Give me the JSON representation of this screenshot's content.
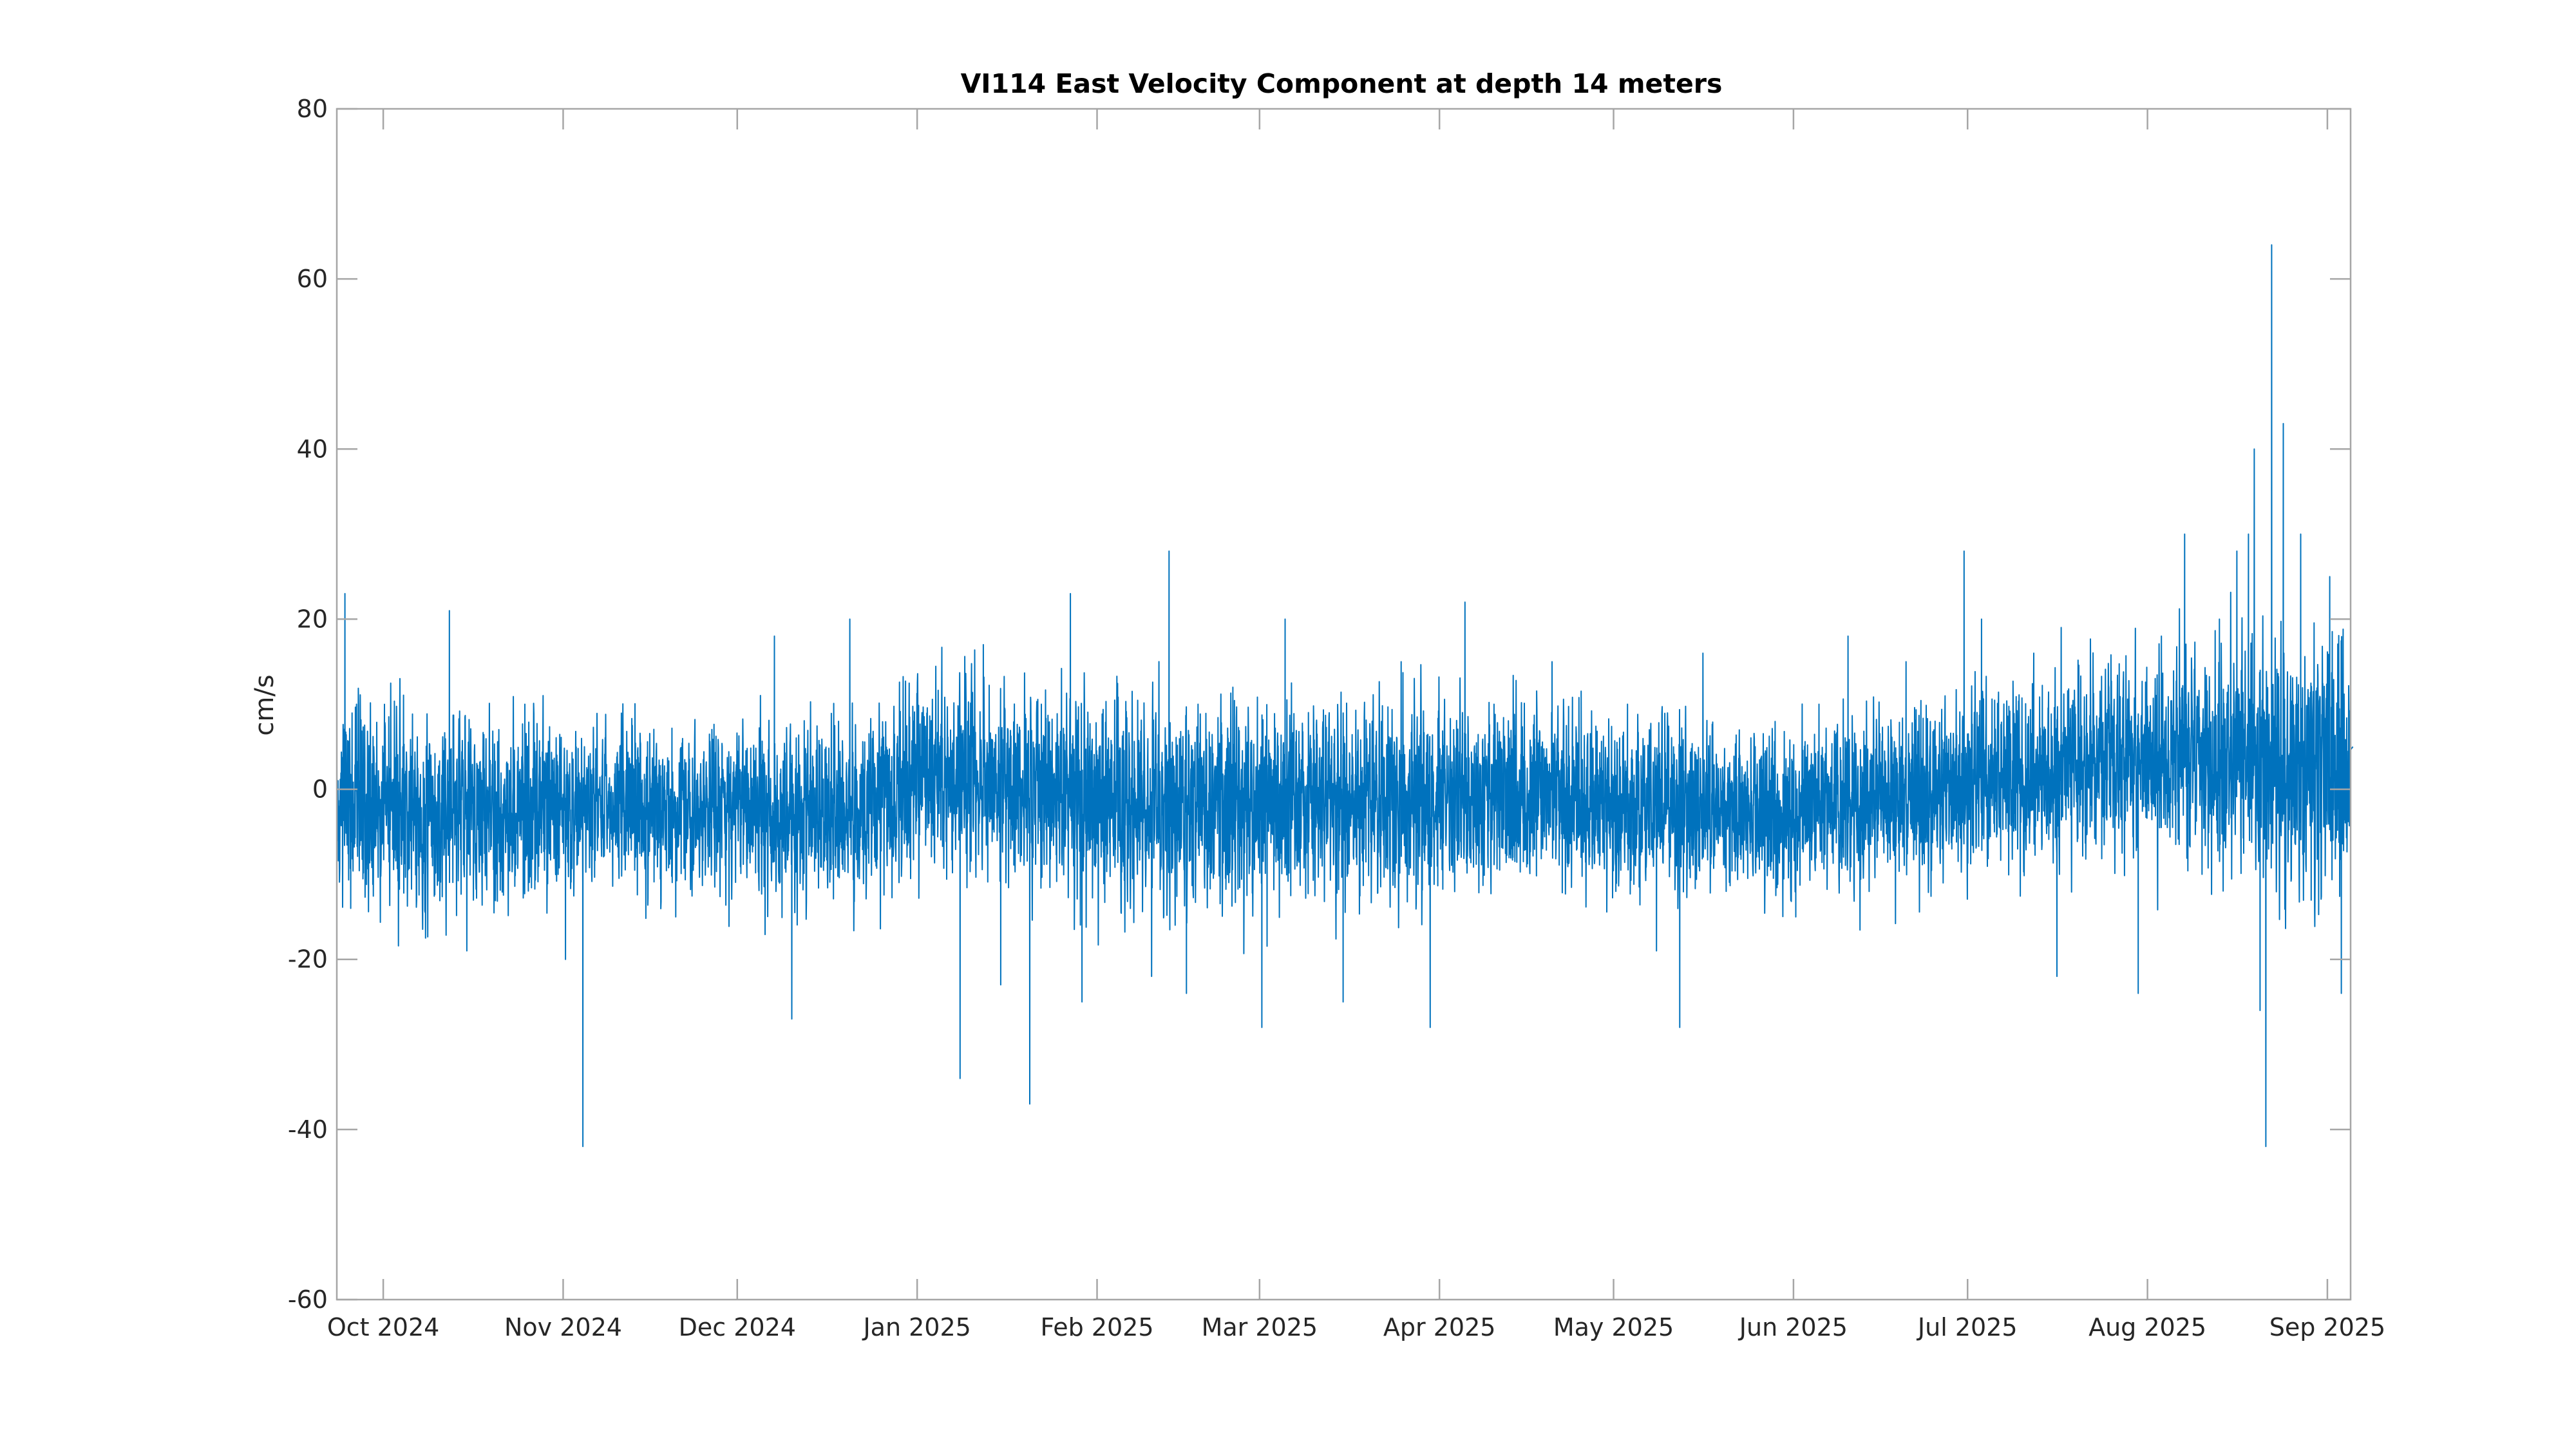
{
  "chart_data": {
    "type": "line",
    "title": "VI114 East Velocity Component at depth 14 meters",
    "xlabel": "",
    "ylabel": "cm/s",
    "ylim": [
      -60,
      80
    ],
    "yticks": [
      -60,
      -40,
      -20,
      0,
      20,
      40,
      60,
      80
    ],
    "xlim": [
      "2024-09-23",
      "2025-09-05"
    ],
    "xticks": [
      {
        "date": "2024-10-01",
        "label": "Oct 2024"
      },
      {
        "date": "2024-11-01",
        "label": "Nov 2024"
      },
      {
        "date": "2024-12-01",
        "label": "Dec 2024"
      },
      {
        "date": "2025-01-01",
        "label": "Jan 2025"
      },
      {
        "date": "2025-02-01",
        "label": "Feb 2025"
      },
      {
        "date": "2025-03-01",
        "label": "Mar 2025"
      },
      {
        "date": "2025-04-01",
        "label": "Apr 2025"
      },
      {
        "date": "2025-05-01",
        "label": "May 2025"
      },
      {
        "date": "2025-06-01",
        "label": "Jun 2025"
      },
      {
        "date": "2025-07-01",
        "label": "Jul 2025"
      },
      {
        "date": "2025-08-01",
        "label": "Aug 2025"
      },
      {
        "date": "2025-09-01",
        "label": "Sep 2025"
      }
    ],
    "grid": false,
    "legend": "none",
    "series": [
      {
        "color": "#0072BD",
        "x": [
          "2024-09-23",
          "2024-09-24",
          "2024-09-25",
          "2024-09-26",
          "2024-09-28",
          "2024-10-01",
          "2024-10-04",
          "2024-10-09",
          "2024-10-12",
          "2024-10-15",
          "2024-10-20",
          "2024-10-25",
          "2024-10-30",
          "2024-11-01",
          "2024-11-04",
          "2024-11-10",
          "2024-11-15",
          "2024-11-20",
          "2024-11-25",
          "2024-11-28",
          "2024-12-03",
          "2024-12-07",
          "2024-12-10",
          "2024-12-16",
          "2024-12-20",
          "2024-12-26",
          "2024-12-31",
          "2025-01-03",
          "2025-01-08",
          "2025-01-12",
          "2025-01-15",
          "2025-01-17",
          "2025-01-20",
          "2025-01-22",
          "2025-01-24",
          "2025-01-27",
          "2025-01-29",
          "2025-02-01",
          "2025-02-05",
          "2025-02-10",
          "2025-02-13",
          "2025-02-16",
          "2025-02-18",
          "2025-02-20",
          "2025-02-24",
          "2025-03-01",
          "2025-03-05",
          "2025-03-10",
          "2025-03-15",
          "2025-03-20",
          "2025-03-25",
          "2025-03-30",
          "2025-04-01",
          "2025-04-05",
          "2025-04-10",
          "2025-04-15",
          "2025-04-20",
          "2025-04-25",
          "2025-05-01",
          "2025-05-03",
          "2025-05-08",
          "2025-05-12",
          "2025-05-16",
          "2025-05-20",
          "2025-05-25",
          "2025-06-01",
          "2025-06-05",
          "2025-06-10",
          "2025-06-15",
          "2025-06-20",
          "2025-06-25",
          "2025-06-30",
          "2025-07-03",
          "2025-07-07",
          "2025-07-12",
          "2025-07-16",
          "2025-07-20",
          "2025-07-25",
          "2025-07-30",
          "2025-08-03",
          "2025-08-07",
          "2025-08-10",
          "2025-08-13",
          "2025-08-16",
          "2025-08-18",
          "2025-08-19",
          "2025-08-20",
          "2025-08-21",
          "2025-08-22",
          "2025-08-24",
          "2025-08-27",
          "2025-08-30",
          "2025-09-01",
          "2025-09-03",
          "2025-09-05"
        ],
        "y": [
          -2,
          23,
          -14,
          10,
          -5,
          -3,
          5,
          -8,
          21,
          -19,
          -10,
          10,
          -3,
          -20,
          -42,
          -5,
          -1,
          -15,
          -4,
          5,
          -3,
          18,
          -27,
          3,
          20,
          -2,
          8,
          4,
          -34,
          17,
          -23,
          -6,
          -37,
          10,
          -2,
          23,
          -25,
          3,
          4,
          -22,
          28,
          -24,
          10,
          -8,
          12,
          -28,
          20,
          0,
          -25,
          8,
          15,
          -28,
          -2,
          22,
          10,
          -4,
          15,
          -8,
          -12,
          10,
          -19,
          -28,
          16,
          -12,
          5,
          -15,
          10,
          18,
          -8,
          15,
          8,
          28,
          20,
          5,
          16,
          -22,
          3,
          10,
          -24,
          18,
          30,
          -10,
          20,
          28,
          30,
          40,
          -26,
          -42,
          64,
          43,
          30,
          10,
          25,
          -24,
          5
        ]
      }
    ]
  }
}
